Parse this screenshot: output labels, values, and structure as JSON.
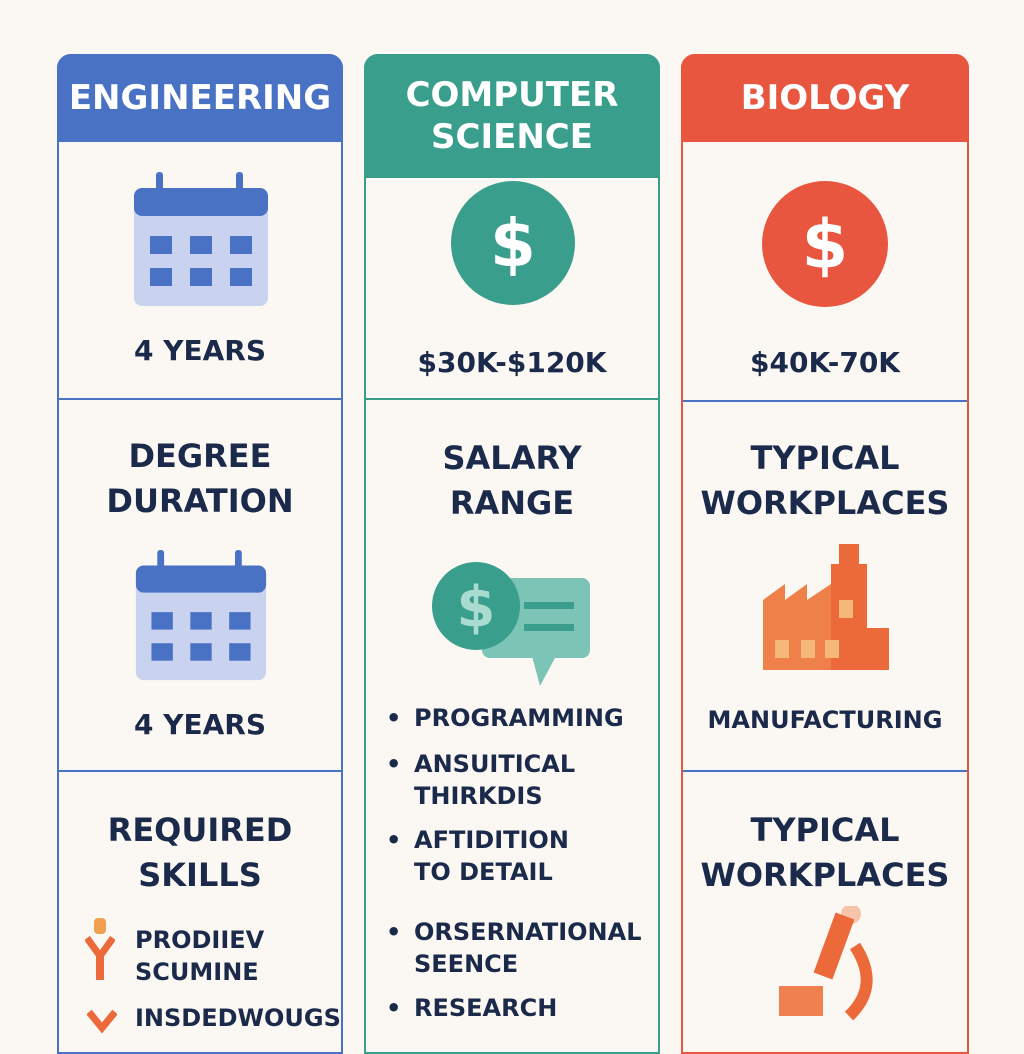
{
  "columns": [
    {
      "title": "ENGINEERING",
      "color": "#4a72c4",
      "top_value": "4 YEARS",
      "section2_title": "DEGREE DURATION",
      "section2_value": "4 YEARS",
      "section3_title": "REQUIRED SKILLS",
      "skills": [
        "PRODIIEV SCUMINE",
        "INSDEDWOUGS"
      ]
    },
    {
      "title": "COMPUTER SCIENCE",
      "color": "#3a9e8c",
      "top_value": "$30K-$120K",
      "section2_title": "SALARY RANGE",
      "skills": [
        "PROGRAMMING",
        "ANSUITICAL THIRKDIS",
        "AFTIDITION TO DETAIL",
        "ORSERNATIONAL SEENCE",
        "RESEARCH"
      ]
    },
    {
      "title": "BIOLOGY",
      "color": "#e8563f",
      "top_value": "$40K-70K",
      "section2_title": "TYPICAL WORKPLACES",
      "section2_value": "MANUFACTURING",
      "section3_title": "TYPICAL WORKPLACES"
    }
  ],
  "icons": [
    "calendar-icon",
    "dollar-icon",
    "salary-chat-icon",
    "factory-icon",
    "person-icon",
    "microscope-icon"
  ]
}
